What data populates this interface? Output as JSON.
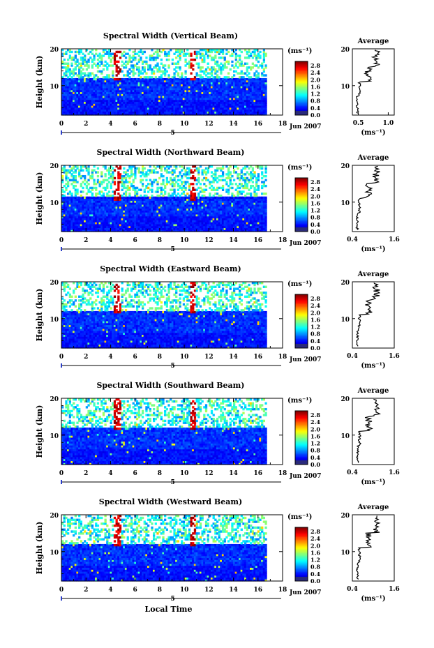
{
  "chart_data": [
    {
      "type": "heatmap",
      "title": "Spectral Width (Vertical Beam)",
      "ylabel": "Height (km)",
      "xlim": [
        0,
        18
      ],
      "ylim": [
        2,
        20
      ],
      "x_ticks": [
        "0",
        "2",
        "4",
        "6",
        "8",
        "10",
        "12",
        "14",
        "16",
        "18"
      ],
      "y_ticks": [
        "10",
        "20"
      ],
      "colorbar": {
        "unit": "(ms⁻¹)",
        "labels": [
          "2.8",
          "2.4",
          "2.0",
          "1.6",
          "1.2",
          "0.8",
          "0.4",
          "0.0"
        ],
        "range": [
          0,
          2.8
        ]
      },
      "date_marker": "5",
      "date_label": "Jun 2007",
      "features": {
        "data_x_end": 16.7,
        "cloud_gap_top_km": 19.5,
        "cloud_gap_bottom_km": 12,
        "spikes_x": [
          4.5,
          10.6
        ]
      },
      "profile": {
        "title": "Average",
        "xlabel": "(ms⁻¹)",
        "x_ticks": [
          "0.5",
          "1.0"
        ],
        "xlim": [
          0.4,
          1.1
        ]
      }
    },
    {
      "type": "heatmap",
      "title": "Spectral Width (Northward Beam)",
      "ylabel": "Height (km)",
      "xlim": [
        0,
        18
      ],
      "ylim": [
        2,
        20
      ],
      "x_ticks": [
        "0",
        "2",
        "4",
        "6",
        "8",
        "10",
        "12",
        "14",
        "16",
        "18"
      ],
      "y_ticks": [
        "10",
        "20"
      ],
      "colorbar": {
        "unit": "(ms⁻¹)",
        "labels": [
          "2.8",
          "2.4",
          "2.0",
          "1.6",
          "1.2",
          "0.8",
          "0.4",
          "0.0"
        ],
        "range": [
          0,
          2.8
        ]
      },
      "date_marker": "5",
      "date_label": "Jun 2007",
      "features": {
        "data_x_end": 16.7,
        "cloud_gap_top_km": 20,
        "cloud_gap_bottom_km": 11,
        "spikes_x": [
          4.5,
          10.6
        ]
      },
      "profile": {
        "title": "Average",
        "xlabel": "(ms⁻¹)",
        "x_ticks": [
          "0.4",
          "1.6"
        ],
        "xlim": [
          0.4,
          1.6
        ]
      }
    },
    {
      "type": "heatmap",
      "title": "Spectral Width (Eastward Beam)",
      "ylabel": "Height (km)",
      "xlim": [
        0,
        18
      ],
      "ylim": [
        2,
        20
      ],
      "x_ticks": [
        "0",
        "2",
        "4",
        "6",
        "8",
        "10",
        "12",
        "14",
        "16",
        "18"
      ],
      "y_ticks": [
        "10",
        "20"
      ],
      "colorbar": {
        "unit": "(ms⁻¹)",
        "labels": [
          "2.8",
          "2.4",
          "2.0",
          "1.6",
          "1.2",
          "0.8",
          "0.4",
          "0.0"
        ],
        "range": [
          0,
          2.8
        ]
      },
      "date_marker": "5",
      "date_label": "Jun 2007",
      "features": {
        "data_x_end": 16.7,
        "cloud_gap_top_km": 20,
        "cloud_gap_bottom_km": 12,
        "spikes_x": [
          4.5,
          10.6
        ]
      },
      "profile": {
        "title": "Average",
        "xlabel": "(ms⁻¹)",
        "x_ticks": [
          "0.4",
          "1.6"
        ],
        "xlim": [
          0.4,
          1.6
        ]
      }
    },
    {
      "type": "heatmap",
      "title": "Spectral Width (Southward Beam)",
      "ylabel": "Height (km)",
      "xlim": [
        0,
        18
      ],
      "ylim": [
        2,
        20
      ],
      "x_ticks": [
        "0",
        "2",
        "4",
        "6",
        "8",
        "10",
        "12",
        "14",
        "16",
        "18"
      ],
      "y_ticks": [
        "10",
        "20"
      ],
      "colorbar": {
        "unit": "(ms⁻¹)",
        "labels": [
          "2.8",
          "2.4",
          "2.0",
          "1.6",
          "1.2",
          "0.8",
          "0.4",
          "0.0"
        ],
        "range": [
          0,
          2.8
        ]
      },
      "date_marker": "5",
      "date_label": "Jun 2007",
      "features": {
        "data_x_end": 16.7,
        "cloud_gap_top_km": 20,
        "cloud_gap_bottom_km": 12,
        "spikes_x": [
          4.5,
          10.6
        ]
      },
      "profile": {
        "title": "Average",
        "xlabel": "(ms⁻¹)",
        "x_ticks": [
          "0.4",
          "1.6"
        ],
        "xlim": [
          0.4,
          1.6
        ]
      }
    },
    {
      "type": "heatmap",
      "title": "Spectral Width (Westward Beam)",
      "ylabel": "Height (km)",
      "xlabel": "Local Time",
      "xlim": [
        0,
        18
      ],
      "ylim": [
        2,
        20
      ],
      "x_ticks": [
        "0",
        "2",
        "4",
        "6",
        "8",
        "10",
        "12",
        "14",
        "16",
        "18"
      ],
      "y_ticks": [
        "10",
        "20"
      ],
      "colorbar": {
        "unit": "(ms⁻¹)",
        "labels": [
          "2.8",
          "2.4",
          "2.0",
          "1.6",
          "1.2",
          "0.8",
          "0.4",
          "0.0"
        ],
        "range": [
          0,
          2.8
        ]
      },
      "date_marker": "5",
      "date_label": "Jun 2007",
      "features": {
        "data_x_end": 16.7,
        "cloud_gap_top_km": 20,
        "cloud_gap_bottom_km": 12,
        "spikes_x": [
          4.5,
          10.6
        ]
      },
      "profile": {
        "title": "Average",
        "xlabel": "(ms⁻¹)",
        "x_ticks": [
          "0.4",
          "1.6"
        ],
        "xlim": [
          0.4,
          1.6
        ]
      }
    }
  ]
}
